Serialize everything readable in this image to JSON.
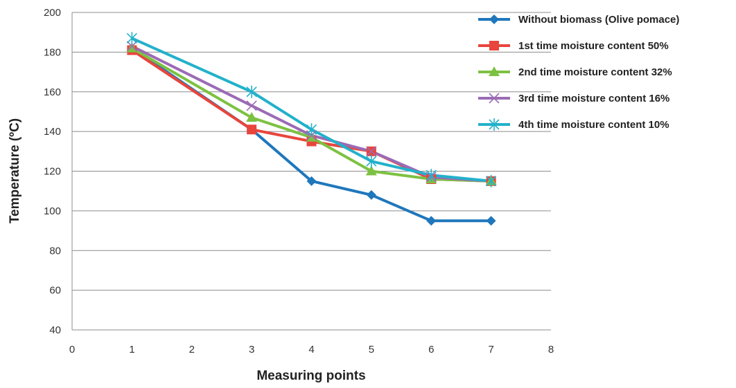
{
  "chart_data": {
    "type": "line",
    "title": "",
    "xlabel": "Measuring points",
    "ylabel": "Temperature (ºC)",
    "xlim": [
      0,
      8
    ],
    "ylim": [
      40,
      200
    ],
    "xticks": [
      0,
      1,
      2,
      3,
      4,
      5,
      6,
      7,
      8
    ],
    "yticks": [
      40,
      60,
      80,
      100,
      120,
      140,
      160,
      180,
      200
    ],
    "grid": "horizontal",
    "legend_position": "right",
    "x": [
      1,
      3,
      4,
      5,
      6,
      7
    ],
    "series": [
      {
        "name": "Without biomass (Olive pomace)",
        "color": "#1F77BC",
        "marker": "diamond",
        "values": [
          182,
          141,
          115,
          108,
          95,
          95
        ]
      },
      {
        "name": "1st time moisture content 50%",
        "color": "#E8453C",
        "marker": "square",
        "values": [
          181,
          141,
          135,
          130,
          116,
          115
        ]
      },
      {
        "name": "2nd time moisture content 32%",
        "color": "#7DC142",
        "marker": "triangle",
        "values": [
          182,
          147,
          137,
          120,
          116,
          115
        ]
      },
      {
        "name": "3rd time moisture content 16%",
        "color": "#9B6BB5",
        "marker": "x",
        "values": [
          183,
          153,
          138,
          130,
          117,
          115
        ]
      },
      {
        "name": "4th time moisture content 10%",
        "color": "#22B1CB",
        "marker": "asterisk",
        "values": [
          187,
          160,
          141,
          125,
          118,
          115
        ]
      }
    ]
  }
}
